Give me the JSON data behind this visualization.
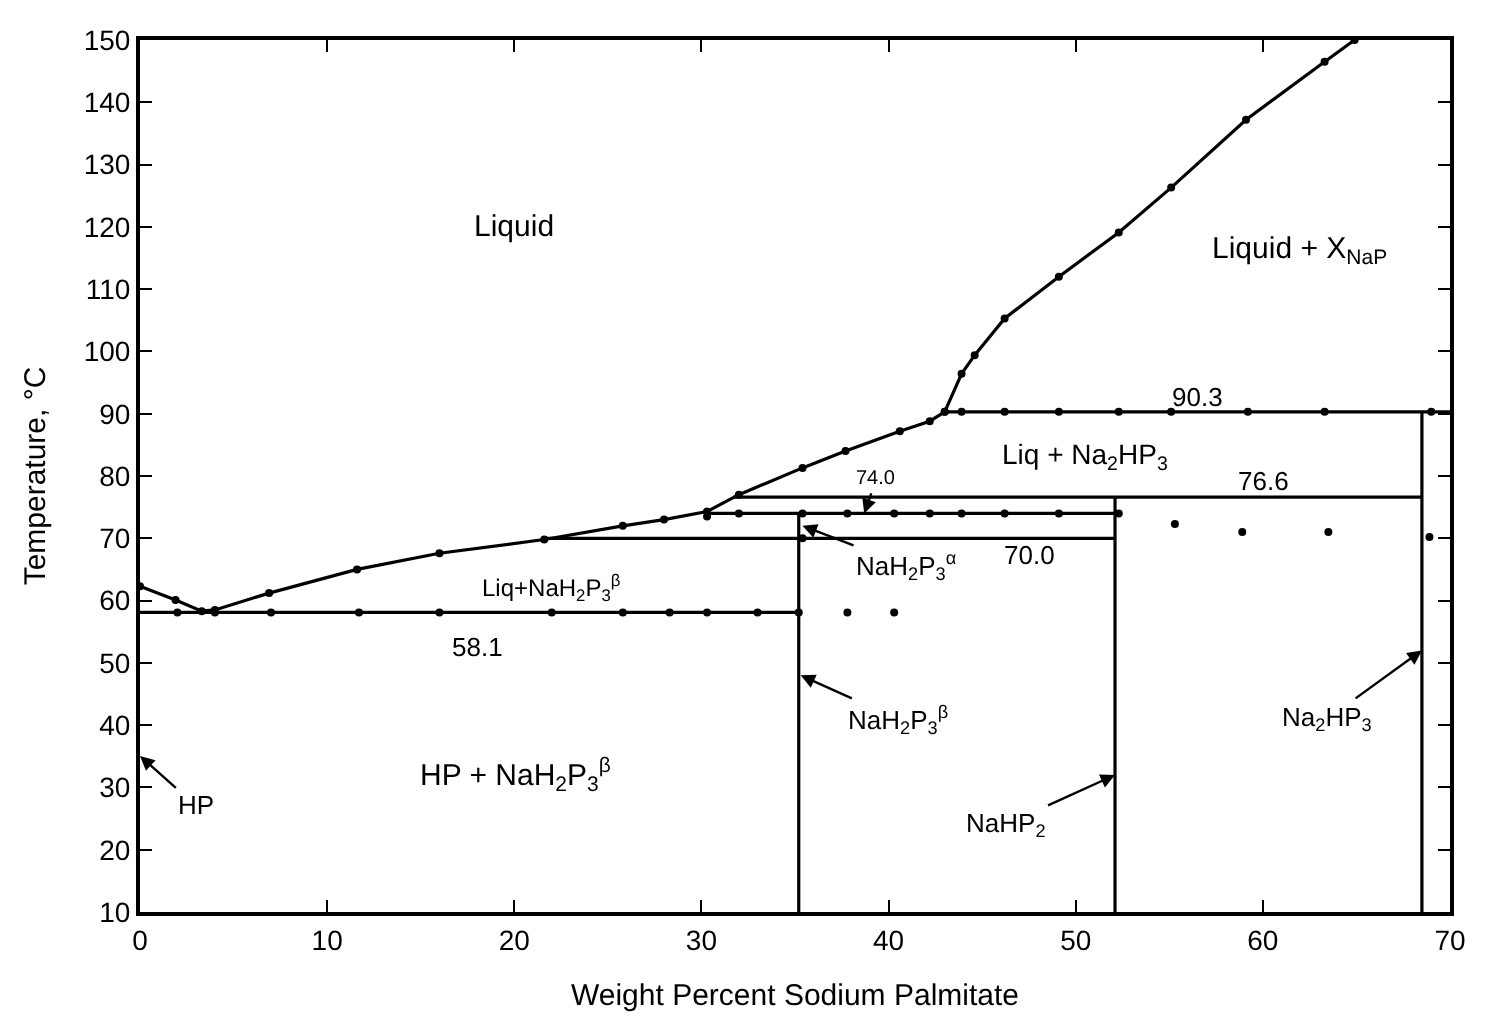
{
  "chart_data": {
    "type": "line",
    "xlabel": "Weight Percent Sodium Palmitate",
    "ylabel": "Temperature, °C",
    "xlim": [
      0,
      70
    ],
    "xticks": [
      0,
      10,
      20,
      30,
      40,
      50,
      60,
      70
    ],
    "ylim": [
      10,
      150
    ],
    "yticks": [
      10,
      20,
      30,
      40,
      50,
      60,
      70,
      80,
      90,
      100,
      110,
      120,
      130,
      140,
      150
    ],
    "line_style": "solid",
    "marker": "none",
    "series": [
      {
        "type": "line",
        "marker": "circle",
        "color": "#000000",
        "x": [
          0,
          1.9,
          3.3,
          4.0,
          6.9,
          11.6,
          16,
          21.6,
          25.8,
          28,
          30.3,
          32,
          35.4,
          37.7,
          40.6,
          42.2,
          43.0
        ],
        "values": [
          62.3,
          60.1,
          58.3,
          58.5,
          61.2,
          65,
          67.6,
          69.8,
          72,
          73,
          74.3,
          77,
          81.3,
          84,
          87.2,
          88.8,
          90.3
        ]
      },
      {
        "type": "line",
        "marker": "circle",
        "color": "#000000",
        "x": [
          43.0,
          43.9,
          44.6,
          46.2,
          49.1,
          52.3,
          55.1,
          59.1,
          63.3,
          64.9
        ],
        "values": [
          90.3,
          96.4,
          99.4,
          105.3,
          112,
          119.1,
          126.3,
          137.2,
          146.5,
          150
        ]
      },
      {
        "color": "#000000",
        "x": [
          0,
          35.2
        ],
        "values": [
          58.1,
          58.1
        ]
      },
      {
        "color": "#000000",
        "x": [
          21.6,
          52.1
        ],
        "values": [
          70.0,
          70.0
        ]
      },
      {
        "color": "#000000",
        "x": [
          30.3,
          52.1
        ],
        "values": [
          74.0,
          74.0
        ]
      },
      {
        "color": "#000000",
        "x": [
          31.7,
          68.5
        ],
        "values": [
          76.6,
          76.6
        ]
      },
      {
        "color": "#000000",
        "x": [
          43.0,
          70
        ],
        "values": [
          90.3,
          90.3
        ]
      },
      {
        "color": "#000000",
        "x": [
          35.2,
          35.2
        ],
        "values": [
          10,
          74.0
        ]
      },
      {
        "color": "#000000",
        "x": [
          52.1,
          52.1
        ],
        "values": [
          10,
          76.6
        ]
      },
      {
        "color": "#000000",
        "x": [
          68.5,
          68.5
        ],
        "values": [
          10,
          90.3
        ]
      },
      {
        "type": "scatter",
        "marker": "circle",
        "color": "#000000",
        "x": [
          2,
          4,
          7,
          11.7,
          16,
          22,
          25.8,
          28.3,
          30.3,
          33,
          35.2,
          37.8,
          40.3,
          32,
          35.4,
          37.8,
          40.3,
          42.2,
          43.9,
          46.2,
          49.1,
          52.3,
          35.4,
          55.3,
          58.9,
          63.5,
          68.9,
          30.3,
          43.9,
          46.2,
          49.1,
          52.3,
          55.1,
          59.2,
          63.3,
          69
        ],
        "values": [
          58.1,
          58.1,
          58.1,
          58.1,
          58.1,
          58.1,
          58.1,
          58.1,
          58.1,
          58.1,
          58.1,
          58.1,
          58.1,
          74,
          74,
          74,
          74,
          74,
          74,
          74,
          74,
          74,
          70,
          72.3,
          71,
          71,
          70.2,
          73.5,
          90.3,
          90.3,
          90.3,
          90.3,
          90.3,
          90.3,
          90.3,
          90.3
        ]
      }
    ],
    "annotations": [
      "Liquid",
      "Liquid + X$_{NaP}$",
      "90.3",
      "Liq + Na$_{2}$HP$_{3}$",
      "76.6",
      {
        "text": "74.0",
        "x": 38.7,
        "y": 74.0
      },
      "70.0",
      {
        "text": "NaH$_{2}$P$_{3}$$^{α}$",
        "x": 35.4,
        "y": 72
      },
      "Liq+NaH$_{2}$P$_{3}$$^{β}$",
      "58.1",
      "HP + NaH$_{2}$P$_{3}$$^{β}$",
      "HP",
      {
        "text": "NaH$_{2}$P$_{3}$$^{β}$",
        "x": 35.3,
        "y": 48
      },
      {
        "text": "NaHP$_{2}$",
        "x": 52.1,
        "y": 32
      },
      {
        "text": "Na$_{2}$HP$_{3}$",
        "x": 68.5,
        "y": 52
      }
    ]
  }
}
